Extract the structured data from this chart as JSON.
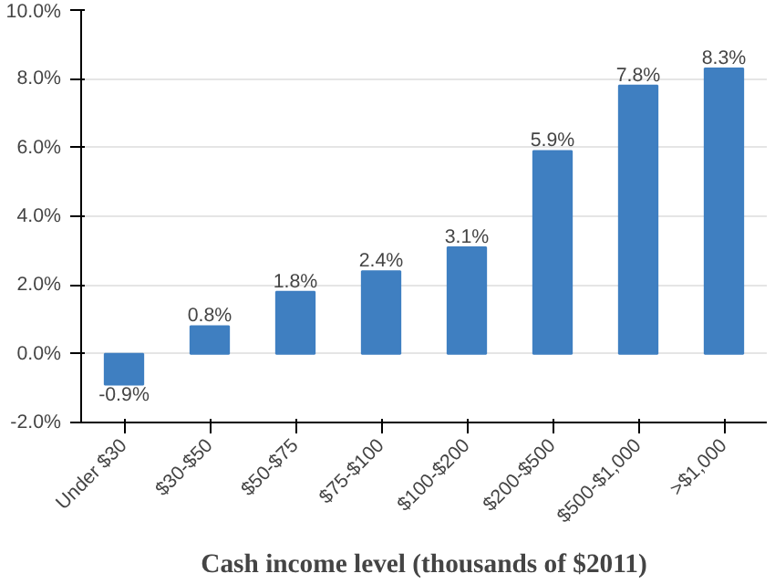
{
  "chart_data": {
    "type": "bar",
    "xlabel": "Cash income level (thousands of $2011)",
    "categories": [
      "Under $30",
      "$30-$50",
      "$50-$75",
      "$75-$100",
      "$100-$200",
      "$200-$500",
      "$500-$1,000",
      ">$1,000"
    ],
    "values": [
      -0.9,
      0.8,
      1.8,
      2.4,
      3.1,
      5.9,
      7.8,
      8.3
    ],
    "value_labels": [
      "-0.9%",
      "0.8%",
      "1.8%",
      "2.4%",
      "3.1%",
      "5.9%",
      "7.8%",
      "8.3%"
    ],
    "color": "#3f7fc1",
    "ylim": [
      -2,
      10
    ],
    "yticks": [
      {
        "value": -2,
        "label": "-2.0%"
      },
      {
        "value": 0,
        "label": "0.0%"
      },
      {
        "value": 2,
        "label": "2.0%"
      },
      {
        "value": 4,
        "label": "4.0%"
      },
      {
        "value": 6,
        "label": "6.0%"
      },
      {
        "value": 8,
        "label": "8.0%"
      },
      {
        "value": 10,
        "label": "10.0%"
      }
    ],
    "grid": "y"
  }
}
